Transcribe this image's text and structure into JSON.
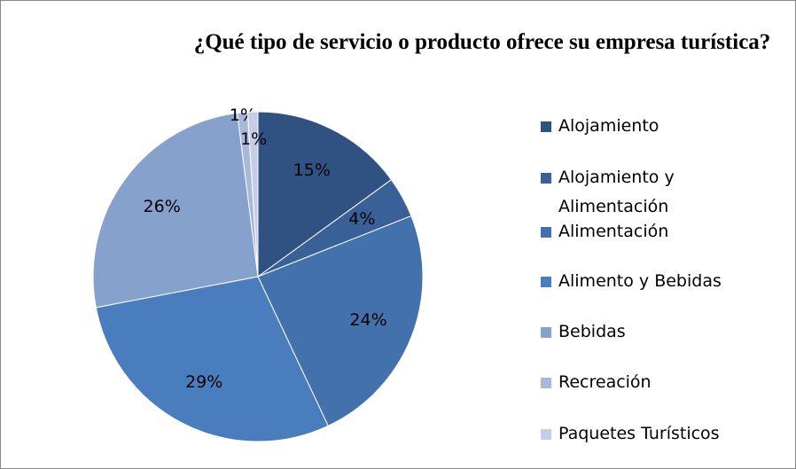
{
  "chart_data": {
    "type": "pie",
    "title": "¿Qué tipo de servicio o producto ofrece su empresa turística?",
    "categories": [
      "Alojamiento",
      "Alojamiento y Alimentación",
      "Alimentación",
      "Alimento y Bebidas",
      "Bebidas",
      "Recreación",
      "Paquetes Turísticos"
    ],
    "values": [
      15,
      4,
      24,
      29,
      26,
      1,
      1
    ],
    "value_labels": [
      "15%",
      "4%",
      "24%",
      "29%",
      "26%",
      "1%",
      "1%"
    ],
    "colors": [
      "#2f5282",
      "#3a6098",
      "#4371ab",
      "#4a7dbd",
      "#87a1cd",
      "#a7b8db",
      "#c4cee6"
    ],
    "legend": "right"
  }
}
